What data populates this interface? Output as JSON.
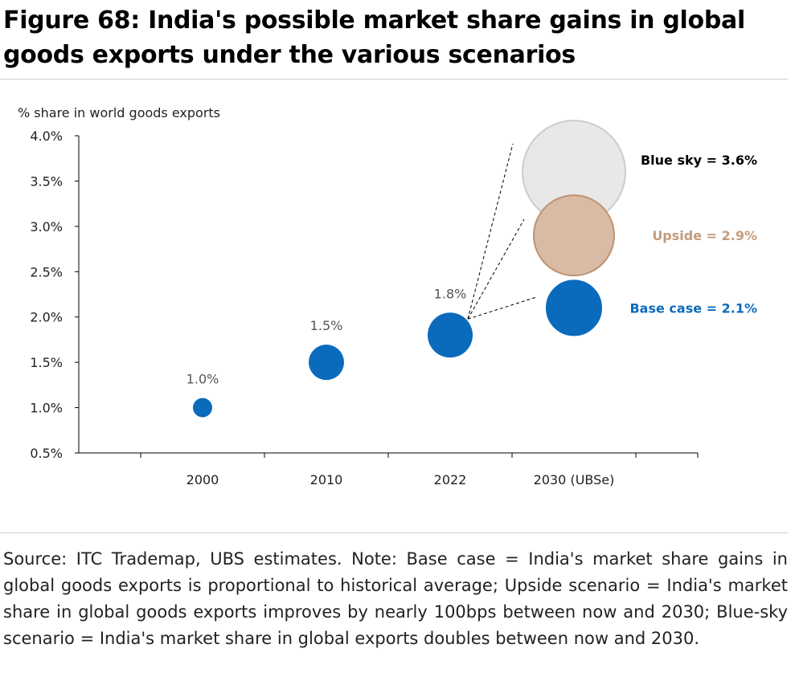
{
  "figure": {
    "title": "Figure 68: India's possible market share gains in global goods exports under the various scenarios",
    "source_note": "Source: ITC Trademap, UBS estimates. Note: Base case = India's market share gains in global goods exports is proportional to historical average; Upside scenario = India's market share in global goods exports improves by nearly 100bps between now and 2030; Blue-sky scenario = India's market share in global exports doubles between now and 2030."
  },
  "chart_data": {
    "type": "scatter",
    "ylabel": "% share in world goods exports",
    "ylim": [
      0.5,
      4.0
    ],
    "y_ticks": [
      "0.5%",
      "1.0%",
      "1.5%",
      "2.0%",
      "2.5%",
      "3.0%",
      "3.5%",
      "4.0%"
    ],
    "y_tick_values": [
      0.5,
      1.0,
      1.5,
      2.0,
      2.5,
      3.0,
      3.5,
      4.0
    ],
    "categories": [
      "2000",
      "2010",
      "2022",
      "2030 (UBSe)"
    ],
    "historical": [
      {
        "x": "2000",
        "y": 1.0,
        "label": "1.0%"
      },
      {
        "x": "2010",
        "y": 1.5,
        "label": "1.5%"
      },
      {
        "x": "2022",
        "y": 1.8,
        "label": "1.8%"
      }
    ],
    "scenarios": [
      {
        "x": "2030 (UBSe)",
        "y": 3.6,
        "label": "Blue sky = 3.6%",
        "fill": "#e8e8e8",
        "stroke": "#cccccc",
        "text_color": "#000000"
      },
      {
        "x": "2030 (UBSe)",
        "y": 2.9,
        "label": "Upside = 2.9%",
        "fill": "#d9bba5",
        "stroke": "#bf9270",
        "text_color": "#c49a7a"
      },
      {
        "x": "2030 (UBSe)",
        "y": 2.1,
        "label": "Base case = 2.1%",
        "fill": "#0a6bbd",
        "stroke": "#0a6bbd",
        "text_color": "#0a6bbd"
      }
    ],
    "bubble_color": "#0a6bbd",
    "grid": false
  }
}
